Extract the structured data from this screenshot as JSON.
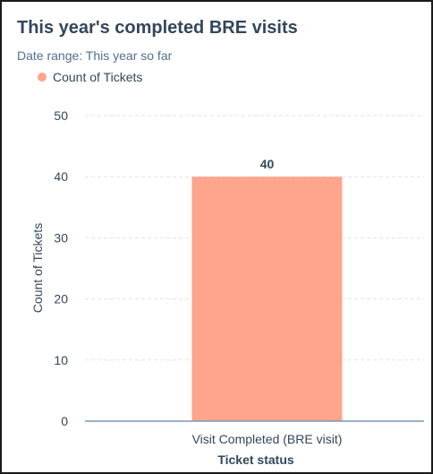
{
  "header": {
    "title": "This year's completed BRE visits",
    "date_range": "Date range: This year so far"
  },
  "colors": {
    "bar": "#ffa48d",
    "axis": "#7c98b6",
    "grid": "#dfe3eb",
    "text": "#33475b"
  },
  "chart_data": {
    "type": "bar",
    "categories": [
      "Visit Completed (BRE visit)"
    ],
    "series": [
      {
        "name": "Count of Tickets",
        "values": [
          40
        ]
      }
    ],
    "data_labels": [
      "40"
    ],
    "xlabel": "Ticket status",
    "ylabel": "Count of Tickets",
    "ylim": [
      0,
      50
    ],
    "yticks": [
      0,
      10,
      20,
      30,
      40,
      50
    ],
    "ytick_labels": [
      "0",
      "10",
      "20",
      "30",
      "40",
      "50"
    ],
    "grid": true,
    "legend": "top-left"
  }
}
